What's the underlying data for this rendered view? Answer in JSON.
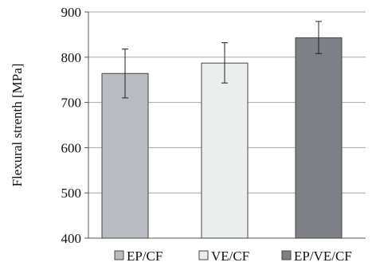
{
  "chart_data": {
    "type": "bar",
    "categories": [
      "EP/CF",
      "VE/CF",
      "EP/VE/CF"
    ],
    "values": [
      764,
      787,
      843
    ],
    "error_low": [
      710,
      743,
      808
    ],
    "error_high": [
      818,
      832,
      879
    ],
    "colors": [
      "#b9bbc0",
      "#eceeed",
      "#7f8085"
    ],
    "title": "",
    "xlabel": "",
    "ylabel": "Flexural strenth [MPa]",
    "ylim": [
      400,
      900
    ],
    "yticks": [
      400,
      500,
      600,
      700,
      800,
      900
    ],
    "ytick_labels": [
      "400",
      "500",
      "600",
      "700",
      "800",
      "900"
    ],
    "grid": "horizontal",
    "legend_position": "bottom"
  }
}
